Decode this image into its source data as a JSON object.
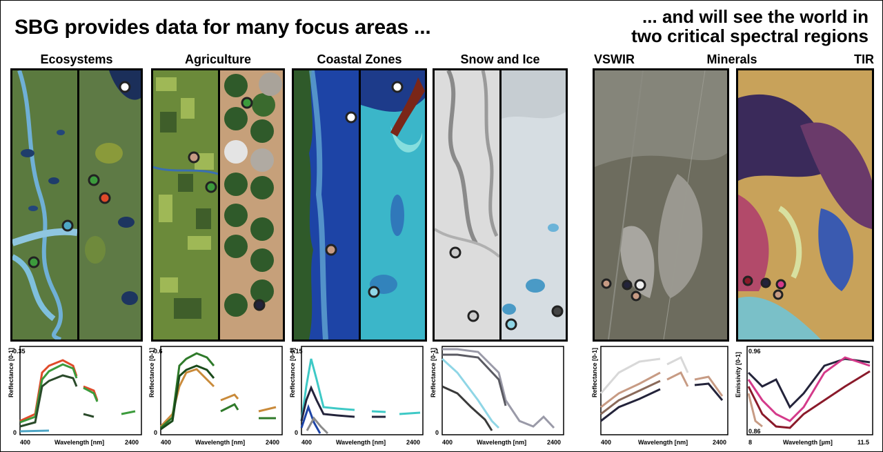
{
  "headline_left": "SBG provides data for many focus areas ...",
  "headline_right_line1": "... and will see the world in",
  "headline_right_line2": "two critical spectral regions",
  "panels": [
    {
      "title": "Ecosystems"
    },
    {
      "title": "Agriculture"
    },
    {
      "title": "Coastal Zones"
    },
    {
      "title": "Snow and Ice"
    }
  ],
  "spectral": {
    "vswir": "VSWIR",
    "minerals": "Minerals",
    "tir": "TIR"
  },
  "colors": {
    "markers": [
      "#ffffff",
      "#e04a2a",
      "#3c9b3c",
      "#23233a",
      "#8fd6e6",
      "#c79b84",
      "#d43a8a"
    ]
  },
  "charts": [
    {
      "ylabel": "Reflectance [0-1]",
      "xlabel": "Wavelength [nm]",
      "ytop": "0.35",
      "ybot": "0",
      "xleft": "400",
      "xright": "2400"
    },
    {
      "ylabel": "Reflectance [0-1]",
      "xlabel": "Wavelength [nm]",
      "ytop": "0.6",
      "ybot": "0",
      "xleft": "400",
      "xright": "2400"
    },
    {
      "ylabel": "Reflectance [0-1]",
      "xlabel": "Wavelength [nm]",
      "ytop": "0.15",
      "ybot": "0",
      "xleft": "400",
      "xright": "2400"
    },
    {
      "ylabel": "Reflectance [0-1]",
      "xlabel": "Wavelength [nm]",
      "ytop": "1",
      "ybot": "0",
      "xleft": "400",
      "xright": "2400"
    },
    {
      "ylabel": "Reflectance [0-1]",
      "xlabel": "Wavelength [nm]",
      "ytop": "",
      "ybot": "",
      "xleft": "400",
      "xright": "2400"
    },
    {
      "ylabel": "Emissivity [0-1]",
      "xlabel": "Wavelength [µm]",
      "ytop": "0.96",
      "ybot": "0.86",
      "xleft": "8",
      "xright": "11.5"
    }
  ]
}
